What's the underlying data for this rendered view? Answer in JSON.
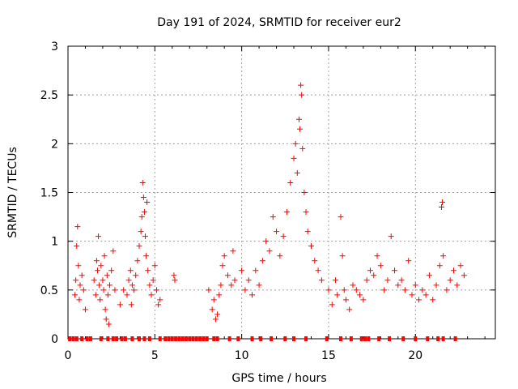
{
  "chart_data": {
    "type": "scatter",
    "title": "Day 191 of 2024, SRMTID for receiver eur2",
    "xlabel": "GPS time / hours",
    "ylabel": "SRMTID / TECUs",
    "xlim": [
      0,
      24.6
    ],
    "ylim": [
      0,
      3
    ],
    "xticks": [
      0,
      5,
      10,
      15,
      20
    ],
    "yticks": [
      0,
      0.5,
      1,
      1.5,
      2,
      2.5,
      3
    ],
    "ytick_labels": [
      "0",
      "0.5",
      "1",
      "1.5",
      "2",
      "2.5",
      "3"
    ],
    "grid": true,
    "marker": "+",
    "color": "#ff0000",
    "series": [
      {
        "name": "SRMTID",
        "points": [
          [
            0.4,
            0.45
          ],
          [
            0.45,
            0.6
          ],
          [
            0.5,
            0.95
          ],
          [
            0.55,
            1.15
          ],
          [
            0.6,
            0.75
          ],
          [
            0.65,
            0.4
          ],
          [
            0.7,
            0.55
          ],
          [
            0.8,
            0.65
          ],
          [
            0.9,
            0.5
          ],
          [
            1.0,
            0.3
          ],
          [
            1.5,
            0.6
          ],
          [
            1.6,
            0.45
          ],
          [
            1.65,
            0.8
          ],
          [
            1.7,
            0.7
          ],
          [
            1.75,
            1.05
          ],
          [
            1.8,
            0.55
          ],
          [
            1.85,
            0.4
          ],
          [
            1.9,
            0.75
          ],
          [
            2.0,
            0.6
          ],
          [
            2.05,
            0.5
          ],
          [
            2.1,
            0.85
          ],
          [
            2.15,
            0.3
          ],
          [
            2.2,
            0.2
          ],
          [
            2.25,
            0.65
          ],
          [
            2.3,
            0.45
          ],
          [
            2.35,
            0.15
          ],
          [
            2.4,
            0.55
          ],
          [
            2.5,
            0.7
          ],
          [
            2.6,
            0.9
          ],
          [
            2.7,
            0.5
          ],
          [
            3.0,
            0.35
          ],
          [
            3.2,
            0.5
          ],
          [
            3.4,
            0.45
          ],
          [
            3.5,
            0.6
          ],
          [
            3.6,
            0.7
          ],
          [
            3.65,
            0.35
          ],
          [
            3.7,
            0.55
          ],
          [
            3.8,
            0.5
          ],
          [
            3.9,
            0.65
          ],
          [
            4.0,
            0.8
          ],
          [
            4.1,
            0.95
          ],
          [
            4.2,
            1.1
          ],
          [
            4.25,
            1.25
          ],
          [
            4.3,
            1.6
          ],
          [
            4.35,
            1.45
          ],
          [
            4.4,
            1.3
          ],
          [
            4.45,
            1.05
          ],
          [
            4.5,
            0.85
          ],
          [
            4.55,
            1.4
          ],
          [
            4.6,
            0.7
          ],
          [
            4.7,
            0.55
          ],
          [
            4.8,
            0.45
          ],
          [
            4.9,
            0.6
          ],
          [
            5.0,
            0.75
          ],
          [
            5.1,
            0.5
          ],
          [
            5.2,
            0.35
          ],
          [
            5.3,
            0.4
          ],
          [
            6.1,
            0.65
          ],
          [
            6.15,
            0.6
          ],
          [
            8.1,
            0.5
          ],
          [
            8.3,
            0.3
          ],
          [
            8.4,
            0.4
          ],
          [
            8.5,
            0.2
          ],
          [
            8.6,
            0.25
          ],
          [
            8.7,
            0.45
          ],
          [
            8.8,
            0.55
          ],
          [
            8.9,
            0.75
          ],
          [
            9.0,
            0.85
          ],
          [
            9.2,
            0.65
          ],
          [
            9.4,
            0.55
          ],
          [
            9.5,
            0.9
          ],
          [
            9.6,
            0.6
          ],
          [
            10.0,
            0.7
          ],
          [
            10.2,
            0.5
          ],
          [
            10.4,
            0.6
          ],
          [
            10.6,
            0.45
          ],
          [
            10.8,
            0.7
          ],
          [
            11.0,
            0.55
          ],
          [
            11.2,
            0.8
          ],
          [
            11.4,
            1.0
          ],
          [
            11.6,
            0.9
          ],
          [
            11.8,
            1.25
          ],
          [
            12.0,
            1.1
          ],
          [
            12.2,
            0.85
          ],
          [
            12.4,
            1.05
          ],
          [
            12.6,
            1.3
          ],
          [
            12.8,
            1.6
          ],
          [
            13.0,
            1.85
          ],
          [
            13.1,
            2.0
          ],
          [
            13.2,
            1.7
          ],
          [
            13.3,
            2.25
          ],
          [
            13.35,
            2.15
          ],
          [
            13.4,
            2.6
          ],
          [
            13.45,
            2.5
          ],
          [
            13.5,
            1.95
          ],
          [
            13.6,
            1.5
          ],
          [
            13.7,
            1.3
          ],
          [
            13.8,
            1.1
          ],
          [
            14.0,
            0.95
          ],
          [
            14.2,
            0.8
          ],
          [
            14.4,
            0.7
          ],
          [
            14.6,
            0.6
          ],
          [
            15.0,
            0.5
          ],
          [
            15.2,
            0.35
          ],
          [
            15.4,
            0.6
          ],
          [
            15.5,
            0.45
          ],
          [
            15.7,
            1.25
          ],
          [
            15.8,
            0.85
          ],
          [
            15.9,
            0.5
          ],
          [
            16.0,
            0.4
          ],
          [
            16.2,
            0.3
          ],
          [
            16.4,
            0.55
          ],
          [
            16.6,
            0.5
          ],
          [
            16.8,
            0.45
          ],
          [
            17.0,
            0.4
          ],
          [
            17.2,
            0.6
          ],
          [
            17.4,
            0.7
          ],
          [
            17.6,
            0.65
          ],
          [
            17.8,
            0.85
          ],
          [
            18.0,
            0.75
          ],
          [
            18.2,
            0.5
          ],
          [
            18.4,
            0.6
          ],
          [
            18.6,
            1.05
          ],
          [
            18.8,
            0.7
          ],
          [
            19.0,
            0.55
          ],
          [
            19.2,
            0.6
          ],
          [
            19.4,
            0.5
          ],
          [
            19.6,
            0.8
          ],
          [
            19.8,
            0.45
          ],
          [
            20.0,
            0.55
          ],
          [
            20.2,
            0.4
          ],
          [
            20.4,
            0.5
          ],
          [
            20.6,
            0.45
          ],
          [
            20.8,
            0.65
          ],
          [
            21.0,
            0.4
          ],
          [
            21.2,
            0.55
          ],
          [
            21.4,
            0.75
          ],
          [
            21.5,
            1.35
          ],
          [
            21.55,
            1.4
          ],
          [
            21.6,
            0.85
          ],
          [
            21.8,
            0.5
          ],
          [
            22.0,
            0.6
          ],
          [
            22.2,
            0.7
          ],
          [
            22.4,
            0.55
          ],
          [
            22.6,
            0.75
          ],
          [
            22.8,
            0.65
          ]
        ]
      }
    ],
    "zero_value_points": [
      [
        0.1,
        0
      ],
      [
        0.3,
        0
      ],
      [
        0.5,
        0
      ],
      [
        0.8,
        0
      ],
      [
        1.1,
        0
      ],
      [
        1.3,
        0
      ],
      [
        1.9,
        0
      ],
      [
        2.3,
        0
      ],
      [
        2.6,
        0
      ],
      [
        2.8,
        0
      ],
      [
        3.1,
        0
      ],
      [
        3.3,
        0
      ],
      [
        3.7,
        0
      ],
      [
        4.1,
        0
      ],
      [
        4.4,
        0
      ],
      [
        4.7,
        0
      ],
      [
        5.3,
        0
      ],
      [
        5.6,
        0
      ],
      [
        5.8,
        0
      ],
      [
        6.0,
        0
      ],
      [
        6.2,
        0
      ],
      [
        6.4,
        0
      ],
      [
        6.6,
        0
      ],
      [
        6.8,
        0
      ],
      [
        7.0,
        0
      ],
      [
        7.2,
        0
      ],
      [
        7.4,
        0
      ],
      [
        7.6,
        0
      ],
      [
        7.8,
        0
      ],
      [
        8.0,
        0
      ],
      [
        8.4,
        0
      ],
      [
        8.6,
        0
      ],
      [
        9.3,
        0
      ],
      [
        9.8,
        0
      ],
      [
        10.6,
        0
      ],
      [
        11.1,
        0
      ],
      [
        11.7,
        0
      ],
      [
        12.5,
        0
      ],
      [
        13.0,
        0
      ],
      [
        13.7,
        0
      ],
      [
        14.9,
        0
      ],
      [
        15.7,
        0
      ],
      [
        16.3,
        0
      ],
      [
        16.9,
        0
      ],
      [
        17.1,
        0
      ],
      [
        17.3,
        0
      ],
      [
        17.9,
        0
      ],
      [
        18.5,
        0
      ],
      [
        19.3,
        0
      ],
      [
        20.0,
        0
      ],
      [
        20.7,
        0
      ],
      [
        21.3,
        0
      ],
      [
        21.6,
        0
      ],
      [
        22.3,
        0
      ]
    ]
  }
}
